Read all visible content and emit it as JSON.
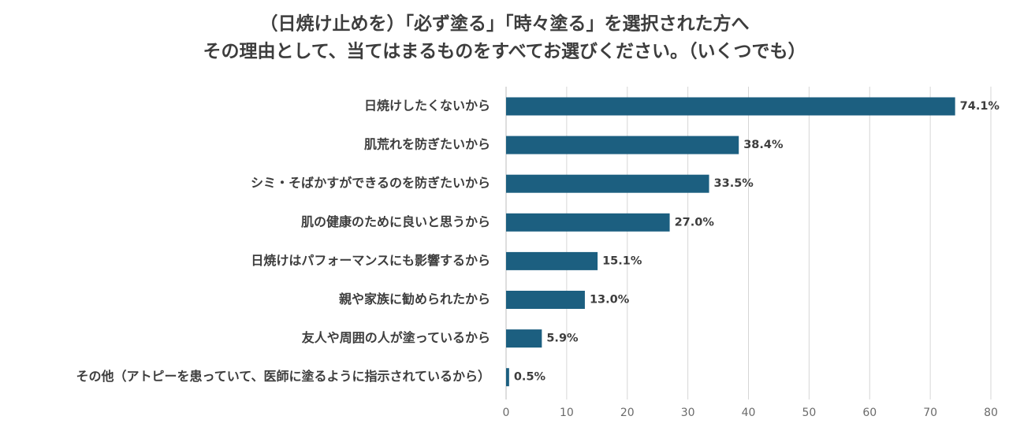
{
  "chart_data": {
    "type": "bar",
    "orientation": "horizontal",
    "title": [
      "（日焼け止めを）「必ず塗る」「時々塗る」を選択された方へ",
      "その理由として、当てはまるものをすべてお選びください。（いくつでも）"
    ],
    "categories": [
      "日焼けしたくないから",
      "肌荒れを防ぎたいから",
      "シミ・そばかすができるのを防ぎたいから",
      "肌の健康のために良いと思うから",
      "日焼けはパフォーマンスにも影響するから",
      "親や家族に勧められたから",
      "友人や周囲の人が塗っているから",
      "その他（アトピーを患っていて、医師に塗るように指示されているから）"
    ],
    "values": [
      74.1,
      38.4,
      33.5,
      27.0,
      15.1,
      13.0,
      5.9,
      0.5
    ],
    "value_labels": [
      "74.1%",
      "38.4%",
      "33.5%",
      "27.0%",
      "15.1%",
      "13.0%",
      "5.9%",
      "0.5%"
    ],
    "xlim": [
      0,
      80
    ],
    "xticks": [
      0,
      10,
      20,
      30,
      40,
      50,
      60,
      70,
      80
    ],
    "xtick_labels": [
      "0",
      "10",
      "20",
      "30",
      "40",
      "50",
      "60",
      "70",
      "80"
    ],
    "grid": true,
    "legend": "none",
    "colors": {
      "bar": "#1c5f80"
    }
  }
}
